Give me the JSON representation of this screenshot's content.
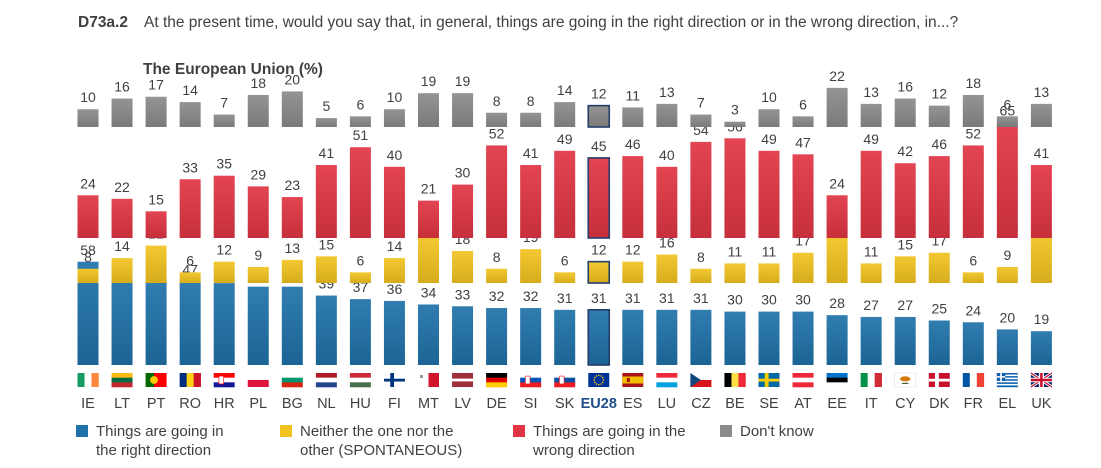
{
  "header": {
    "code": "D73a.2",
    "question": "At the present time, would you say that, in general, things are going in the right direction or in the wrong direction, in...?",
    "subtitle": "The European Union (%)"
  },
  "colors": {
    "right": "#1f72a9",
    "neither": "#f2c320",
    "wrong": "#e13543",
    "dontknow": "#8b8b8b",
    "highlight_border": "#253d6b",
    "text": "#404040",
    "eu28_label": "#1f4e8a"
  },
  "legend": [
    {
      "key": "right",
      "label": "Things are going in the right direction"
    },
    {
      "key": "neither",
      "label": "Neither the one nor the other (SPONTANEOUS)"
    },
    {
      "key": "wrong",
      "label": "Things are going in the wrong direction"
    },
    {
      "key": "dontknow",
      "label": "Don't know"
    }
  ],
  "chart_data": {
    "type": "bar",
    "title": "The European Union (%)",
    "highlight": "EU28",
    "categories": [
      "IE",
      "LT",
      "PT",
      "RO",
      "HR",
      "PL",
      "BG",
      "NL",
      "HU",
      "FI",
      "MT",
      "LV",
      "DE",
      "SI",
      "SK",
      "EU28",
      "ES",
      "LU",
      "CZ",
      "BE",
      "SE",
      "AT",
      "EE",
      "IT",
      "CY",
      "DK",
      "FR",
      "EL",
      "UK"
    ],
    "series": [
      {
        "name": "Things are going in the right direction",
        "key": "right",
        "values": [
          58,
          48,
          47,
          47,
          46,
          44,
          44,
          39,
          37,
          36,
          34,
          33,
          32,
          32,
          31,
          31,
          31,
          31,
          31,
          30,
          30,
          30,
          28,
          27,
          27,
          25,
          24,
          20,
          19
        ]
      },
      {
        "name": "Neither the one nor the other (SPONTANEOUS)",
        "key": "neither",
        "values": [
          8,
          14,
          21,
          6,
          12,
          9,
          13,
          15,
          6,
          14,
          26,
          18,
          8,
          19,
          6,
          12,
          12,
          16,
          8,
          11,
          11,
          17,
          26,
          11,
          15,
          17,
          6,
          9,
          27
        ]
      },
      {
        "name": "Things are going in the wrong direction",
        "key": "wrong",
        "values": [
          24,
          22,
          15,
          33,
          35,
          29,
          23,
          41,
          51,
          40,
          21,
          30,
          52,
          41,
          49,
          45,
          46,
          40,
          54,
          56,
          49,
          47,
          24,
          49,
          42,
          46,
          52,
          65,
          41
        ]
      },
      {
        "name": "Don't know",
        "key": "dontknow",
        "values": [
          10,
          16,
          17,
          14,
          7,
          18,
          20,
          5,
          6,
          10,
          19,
          19,
          8,
          8,
          14,
          12,
          11,
          13,
          7,
          3,
          10,
          6,
          22,
          13,
          16,
          12,
          18,
          6,
          13
        ]
      }
    ]
  }
}
